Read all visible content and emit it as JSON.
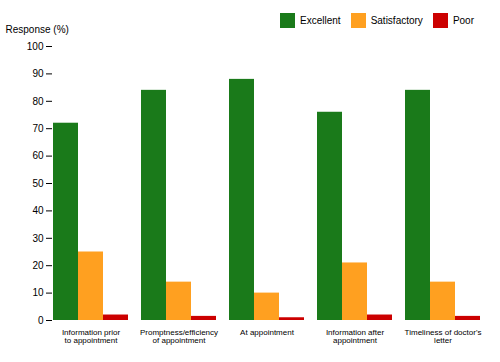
{
  "chart_data": {
    "type": "bar",
    "categories": [
      "Information prior\nto appointment",
      "Promptness/efficiency\nof appointment",
      "At appointment",
      "Information after\nappointment",
      "Timeliness of doctor's\nletter"
    ],
    "series": [
      {
        "name": "Excellent",
        "color": "#1a7a1a",
        "values": [
          72,
          84,
          88,
          76,
          84
        ]
      },
      {
        "name": "Satisfactory",
        "color": "#FFA020",
        "values": [
          25,
          14,
          10,
          21,
          14
        ]
      },
      {
        "name": "Poor",
        "color": "#CC0000",
        "values": [
          2,
          1.5,
          1,
          2,
          1.5
        ]
      }
    ],
    "ylabel": "Response (%)",
    "ylim": [
      0,
      100
    ],
    "yticks": [
      0,
      10,
      20,
      30,
      40,
      50,
      60,
      70,
      80,
      90,
      100
    ],
    "grid": false,
    "legend": "upper right"
  }
}
